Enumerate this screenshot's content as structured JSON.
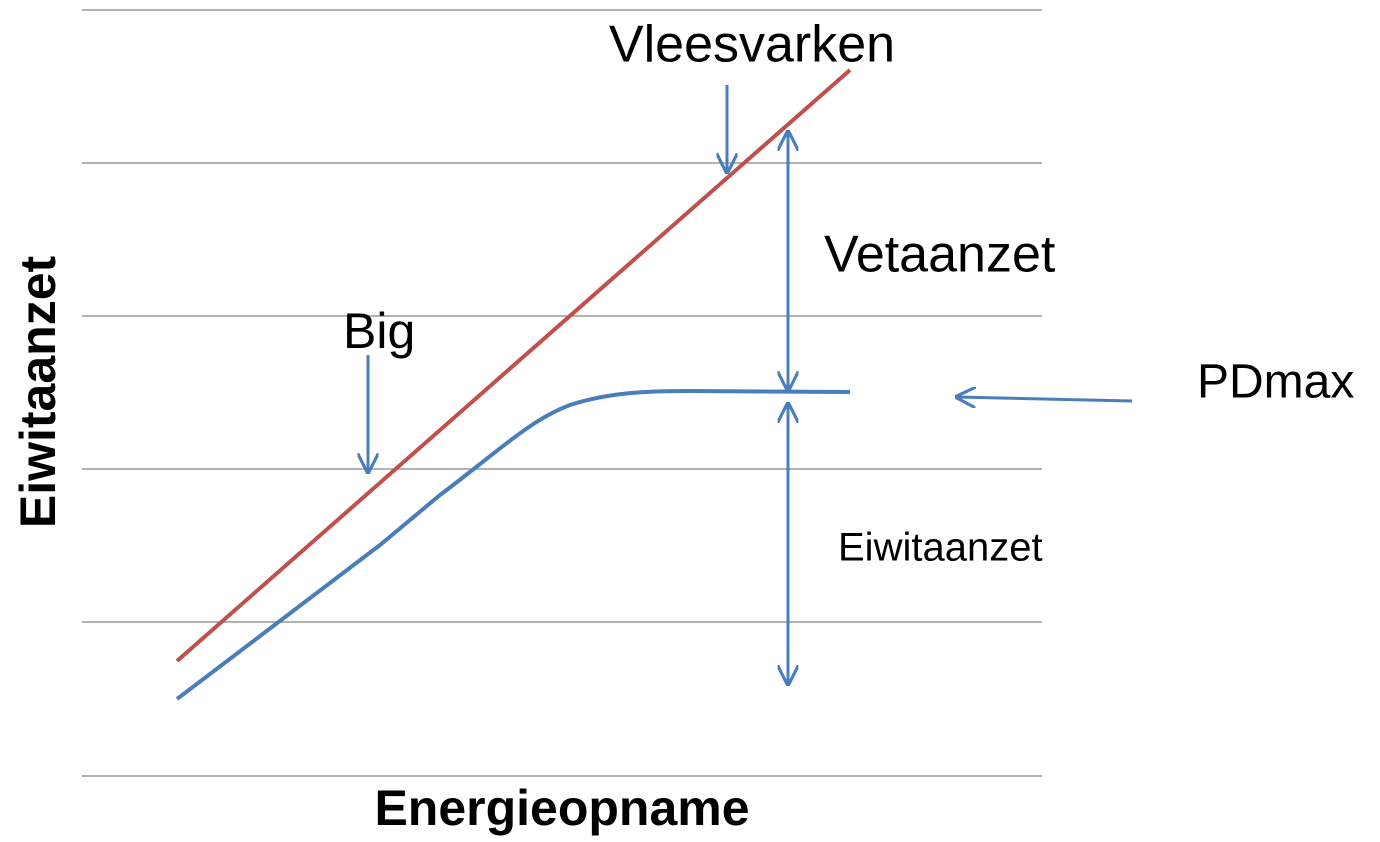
{
  "axes": {
    "x_label": "Energieopname",
    "y_label": "Eiwitaanzet"
  },
  "annotations": {
    "vleesvarken": "Vleesvarken",
    "vetaanzet": "Vetaanzet",
    "big": "Big",
    "pdmax": "PDmax",
    "eiwitaanzet": "Eiwitaanzet"
  }
}
